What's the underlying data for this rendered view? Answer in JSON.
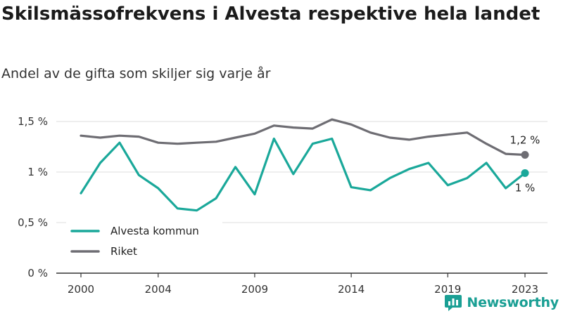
{
  "header": {
    "title": "Skilsmässofrekvens i Alvesta respektive hela landet",
    "subtitle": "Andel av de gifta som skiljer sig varje år"
  },
  "brand": {
    "name": "Newsworthy",
    "icon": "newsworthy-logo-icon",
    "color": "#1a9f94"
  },
  "colors": {
    "alvesta": "#1aa89a",
    "riket": "#6e6d73",
    "grid": "#dcdcdc",
    "axis": "#333333"
  },
  "chart_data": {
    "type": "line",
    "title": "Skilsmässofrekvens i Alvesta respektive hela landet",
    "subtitle": "Andel av de gifta som skiljer sig varje år",
    "xlabel": "",
    "ylabel": "",
    "x": [
      2000,
      2001,
      2002,
      2003,
      2004,
      2005,
      2006,
      2007,
      2008,
      2009,
      2010,
      2011,
      2012,
      2013,
      2014,
      2015,
      2016,
      2017,
      2018,
      2019,
      2020,
      2021,
      2022,
      2023
    ],
    "x_ticks": [
      "2000",
      "2004",
      "2009",
      "2014",
      "2019",
      "2023"
    ],
    "y_ticks": [
      "0 %",
      "0,5 %",
      "1 %",
      "1,5 %"
    ],
    "ylim": [
      0,
      1.5
    ],
    "grid": true,
    "legend_position": "bottom-left",
    "series": [
      {
        "name": "Alvesta kommun",
        "values": [
          0.79,
          1.09,
          1.29,
          0.97,
          0.84,
          0.64,
          0.62,
          0.74,
          1.05,
          0.78,
          1.33,
          0.98,
          1.28,
          1.33,
          0.85,
          0.82,
          0.94,
          1.03,
          1.09,
          0.87,
          0.94,
          1.09,
          0.84,
          0.99
        ],
        "end_label": "1 %"
      },
      {
        "name": "Riket",
        "values": [
          1.36,
          1.34,
          1.36,
          1.35,
          1.29,
          1.28,
          1.29,
          1.3,
          1.34,
          1.38,
          1.46,
          1.44,
          1.43,
          1.52,
          1.47,
          1.39,
          1.34,
          1.32,
          1.35,
          1.37,
          1.39,
          1.28,
          1.18,
          1.17
        ],
        "end_label": "1,2 %"
      }
    ]
  }
}
